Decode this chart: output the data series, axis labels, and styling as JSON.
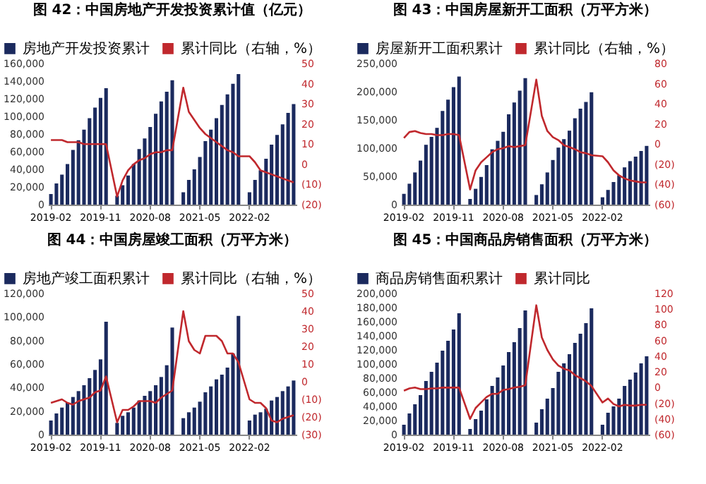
{
  "chart_data": [
    {
      "type": "bar",
      "title": "图 42：中国房地产开发投资累计值（亿元）",
      "categories": [
        "2019-02",
        null,
        null,
        null,
        null,
        null,
        null,
        null,
        null,
        "2019-11",
        null,
        null,
        null,
        null,
        null,
        null,
        null,
        null,
        "2020-08",
        null,
        null,
        null,
        null,
        null,
        null,
        null,
        null,
        "2021-05",
        null,
        null,
        null,
        null,
        null,
        null,
        null,
        null,
        "2022-02",
        null,
        null,
        null,
        null,
        null,
        null,
        null,
        null
      ],
      "series": [
        {
          "name": "房地产开发投资累计",
          "color": "#1b2a5e",
          "values": [
            12000,
            24000,
            34000,
            46000,
            62000,
            73000,
            85000,
            98000,
            110000,
            121000,
            132000,
            null,
            10000,
            22000,
            33000,
            46000,
            63000,
            75000,
            88000,
            103000,
            117000,
            128000,
            141000,
            null,
            14000,
            28000,
            40000,
            54000,
            72000,
            85000,
            98000,
            113000,
            125000,
            137000,
            148000,
            null,
            14000,
            28000,
            39000,
            52000,
            68000,
            79000,
            91000,
            104000,
            114000
          ]
        },
        {
          "name": "累计同比（右轴，%）",
          "type": "line",
          "axis": "y2",
          "color": "#c0282d",
          "values": [
            12,
            12,
            12,
            11,
            11,
            11,
            10,
            10,
            10,
            10,
            10,
            null,
            -16,
            -8,
            -3,
            0,
            2,
            3,
            5,
            6,
            6,
            7,
            7,
            null,
            38,
            26,
            22,
            18,
            15,
            13,
            11,
            9,
            7,
            6,
            4,
            null,
            4,
            1,
            -3,
            -4,
            -5,
            -6,
            -7,
            -8,
            -9
          ]
        }
      ],
      "ylim": [
        0,
        160000
      ],
      "yticks": [
        {
          "value": 0,
          "label": "0"
        },
        {
          "value": 20000,
          "label": "20,000"
        },
        {
          "value": 40000,
          "label": "40,000"
        },
        {
          "value": 60000,
          "label": "60,000"
        },
        {
          "value": 80000,
          "label": "80,000"
        },
        {
          "value": 100000,
          "label": "100,000"
        },
        {
          "value": 120000,
          "label": "120,000"
        },
        {
          "value": 140000,
          "label": "140,000"
        },
        {
          "value": 160000,
          "label": "160,000"
        }
      ],
      "y2lim": [
        -20,
        50
      ],
      "y2ticks": [
        {
          "value": -20,
          "label": "(20)"
        },
        {
          "value": -10,
          "label": "(10)"
        },
        0,
        10,
        20,
        30,
        40,
        50
      ],
      "legend": "top",
      "grid": false
    },
    {
      "type": "bar",
      "title": "图 43：中国房屋新开工面积（万平方米）",
      "categories": [
        "2019-02",
        null,
        null,
        null,
        null,
        null,
        null,
        null,
        null,
        "2019-11",
        null,
        null,
        null,
        null,
        null,
        null,
        null,
        null,
        "2020-08",
        null,
        null,
        null,
        null,
        null,
        null,
        null,
        null,
        "2021-05",
        null,
        null,
        null,
        null,
        null,
        null,
        null,
        null,
        "2022-02",
        null,
        null,
        null,
        null,
        null,
        null,
        null,
        null
      ],
      "series": [
        {
          "name": "房屋新开工面积累计",
          "color": "#1b2a5e",
          "values": [
            19000,
            37000,
            57000,
            78000,
            106000,
            120000,
            136000,
            166000,
            186000,
            208000,
            227000,
            null,
            10000,
            28000,
            49000,
            70000,
            98000,
            113000,
            129000,
            160000,
            181000,
            202000,
            224000,
            null,
            17000,
            36000,
            57000,
            79000,
            101000,
            116000,
            131000,
            153000,
            170000,
            182000,
            199000,
            null,
            13000,
            26000,
            40000,
            52000,
            66000,
            77000,
            85000,
            95000,
            104000
          ]
        },
        {
          "name": "累计同比（右轴，%）",
          "type": "line",
          "axis": "y2",
          "color": "#c0282d",
          "values": [
            6,
            12,
            13,
            11,
            10,
            10,
            9,
            9,
            10,
            10,
            9,
            null,
            -45,
            -26,
            -18,
            -13,
            -8,
            -5,
            -4,
            -2,
            -3,
            -2,
            -1,
            null,
            64,
            28,
            13,
            7,
            4,
            -1,
            -3,
            -5,
            -8,
            -9,
            -11,
            null,
            -12,
            -18,
            -26,
            -31,
            -34,
            -36,
            -37,
            -38,
            -38
          ]
        }
      ],
      "ylim": [
        0,
        250000
      ],
      "yticks": [
        {
          "value": 0,
          "label": "0"
        },
        {
          "value": 50000,
          "label": "50,000"
        },
        {
          "value": 100000,
          "label": "100,000"
        },
        {
          "value": 150000,
          "label": "150,000"
        },
        {
          "value": 200000,
          "label": "200,000"
        },
        {
          "value": 250000,
          "label": "250,000"
        }
      ],
      "y2lim": [
        -60,
        80
      ],
      "y2ticks": [
        {
          "value": -60,
          "label": "(60)"
        },
        {
          "value": -40,
          "label": "(40)"
        },
        {
          "value": -20,
          "label": "(20)"
        },
        0,
        20,
        40,
        60,
        80
      ],
      "legend": "top",
      "grid": false
    },
    {
      "type": "bar",
      "title": "图 44：中国房屋竣工面积（万平方米）",
      "categories": [
        "2019-02",
        null,
        null,
        null,
        null,
        null,
        null,
        null,
        null,
        "2019-11",
        null,
        null,
        null,
        null,
        null,
        null,
        null,
        null,
        "2020-08",
        null,
        null,
        null,
        null,
        null,
        null,
        null,
        null,
        "2021-05",
        null,
        null,
        null,
        null,
        null,
        null,
        null,
        null,
        "2022-02",
        null,
        null,
        null,
        null,
        null,
        null,
        null,
        null
      ],
      "series": [
        {
          "name": "房地产竣工面积累计",
          "color": "#1b2a5e",
          "values": [
            12000,
            18000,
            23000,
            27000,
            32000,
            37000,
            42000,
            48000,
            55000,
            64000,
            96000,
            null,
            10000,
            16000,
            19000,
            23000,
            29000,
            33000,
            37000,
            42000,
            49000,
            59000,
            91000,
            null,
            14000,
            19000,
            23000,
            28000,
            36000,
            41000,
            47000,
            51000,
            57000,
            69000,
            101000,
            null,
            12000,
            17000,
            19000,
            22000,
            29000,
            32000,
            37000,
            41000,
            46000
          ]
        },
        {
          "name": "累计同比（右轴，%）",
          "type": "line",
          "axis": "y2",
          "color": "#c0282d",
          "values": [
            -12,
            -11,
            -10,
            -12,
            -13,
            -11,
            -10,
            -9,
            -6,
            -5,
            3,
            null,
            -23,
            -16,
            -16,
            -14,
            -11,
            -11,
            -11,
            -12,
            -9,
            -7,
            -5,
            null,
            40,
            23,
            18,
            16,
            26,
            26,
            26,
            23,
            16,
            16,
            11,
            null,
            -10,
            -12,
            -12,
            -15,
            -22,
            -23,
            -21,
            -20,
            -19
          ]
        }
      ],
      "ylim": [
        0,
        120000
      ],
      "yticks": [
        {
          "value": 0,
          "label": "0"
        },
        {
          "value": 20000,
          "label": "20,000"
        },
        {
          "value": 40000,
          "label": "40,000"
        },
        {
          "value": 60000,
          "label": "60,000"
        },
        {
          "value": 80000,
          "label": "80,000"
        },
        {
          "value": 100000,
          "label": "100,000"
        },
        {
          "value": 120000,
          "label": "120,000"
        }
      ],
      "y2lim": [
        -30,
        50
      ],
      "y2ticks": [
        {
          "value": -30,
          "label": "(30)"
        },
        {
          "value": -20,
          "label": "(20)"
        },
        {
          "value": -10,
          "label": "(10)"
        },
        0,
        10,
        20,
        30,
        40,
        50
      ],
      "legend": "top",
      "grid": false
    },
    {
      "type": "bar",
      "title": "图 45：中国商品房销售面积（万平方米）",
      "categories": [
        "2019-02",
        null,
        null,
        null,
        null,
        null,
        null,
        null,
        null,
        "2019-11",
        null,
        null,
        null,
        null,
        null,
        null,
        null,
        null,
        "2020-08",
        null,
        null,
        null,
        null,
        null,
        null,
        null,
        null,
        "2021-05",
        null,
        null,
        null,
        null,
        null,
        null,
        null,
        null,
        "2022-02",
        null,
        null,
        null,
        null,
        null,
        null,
        null,
        null
      ],
      "series": [
        {
          "name": "商品房销售面积累计",
          "color": "#1b2a5e",
          "values": [
            14000,
            30000,
            43000,
            56000,
            76000,
            89000,
            102000,
            119000,
            133000,
            149000,
            172000,
            null,
            8000,
            22000,
            34000,
            50000,
            69000,
            81000,
            98000,
            117000,
            131000,
            151000,
            176000,
            null,
            17000,
            36000,
            51000,
            66000,
            89000,
            101000,
            114000,
            130000,
            143000,
            158000,
            179000,
            null,
            14000,
            31000,
            40000,
            51000,
            69000,
            78000,
            88000,
            101000,
            111000
          ]
        },
        {
          "name": "累计同比",
          "type": "line",
          "axis": "y2",
          "color": "#c0282d",
          "values": [
            -4,
            -1,
            0,
            -2,
            -2,
            -1,
            -1,
            0,
            0,
            0,
            0,
            null,
            -40,
            -26,
            -19,
            -12,
            -8,
            -8,
            -3,
            -2,
            0,
            1,
            3,
            null,
            105,
            64,
            48,
            36,
            28,
            24,
            22,
            16,
            12,
            8,
            2,
            null,
            -19,
            -14,
            -21,
            -24,
            -22,
            -23,
            -23,
            -22,
            -22
          ]
        }
      ],
      "ylim": [
        0,
        200000
      ],
      "yticks": [
        {
          "value": 0,
          "label": "0"
        },
        {
          "value": 20000,
          "label": "20,000"
        },
        {
          "value": 40000,
          "label": "40,000"
        },
        {
          "value": 60000,
          "label": "60,000"
        },
        {
          "value": 80000,
          "label": "80,000"
        },
        {
          "value": 100000,
          "label": "100,000"
        },
        {
          "value": 120000,
          "label": "120,000"
        },
        {
          "value": 140000,
          "label": "140,000"
        },
        {
          "value": 160000,
          "label": "160,000"
        },
        {
          "value": 180000,
          "label": "180,000"
        },
        {
          "value": 200000,
          "label": "200,000"
        }
      ],
      "y2lim": [
        -60,
        120
      ],
      "y2ticks": [
        {
          "value": -60,
          "label": "(60)"
        },
        {
          "value": -40,
          "label": "(40)"
        },
        {
          "value": -20,
          "label": "(20)"
        },
        0,
        20,
        40,
        60,
        80,
        100,
        120
      ],
      "legend": "top",
      "grid": false
    }
  ]
}
